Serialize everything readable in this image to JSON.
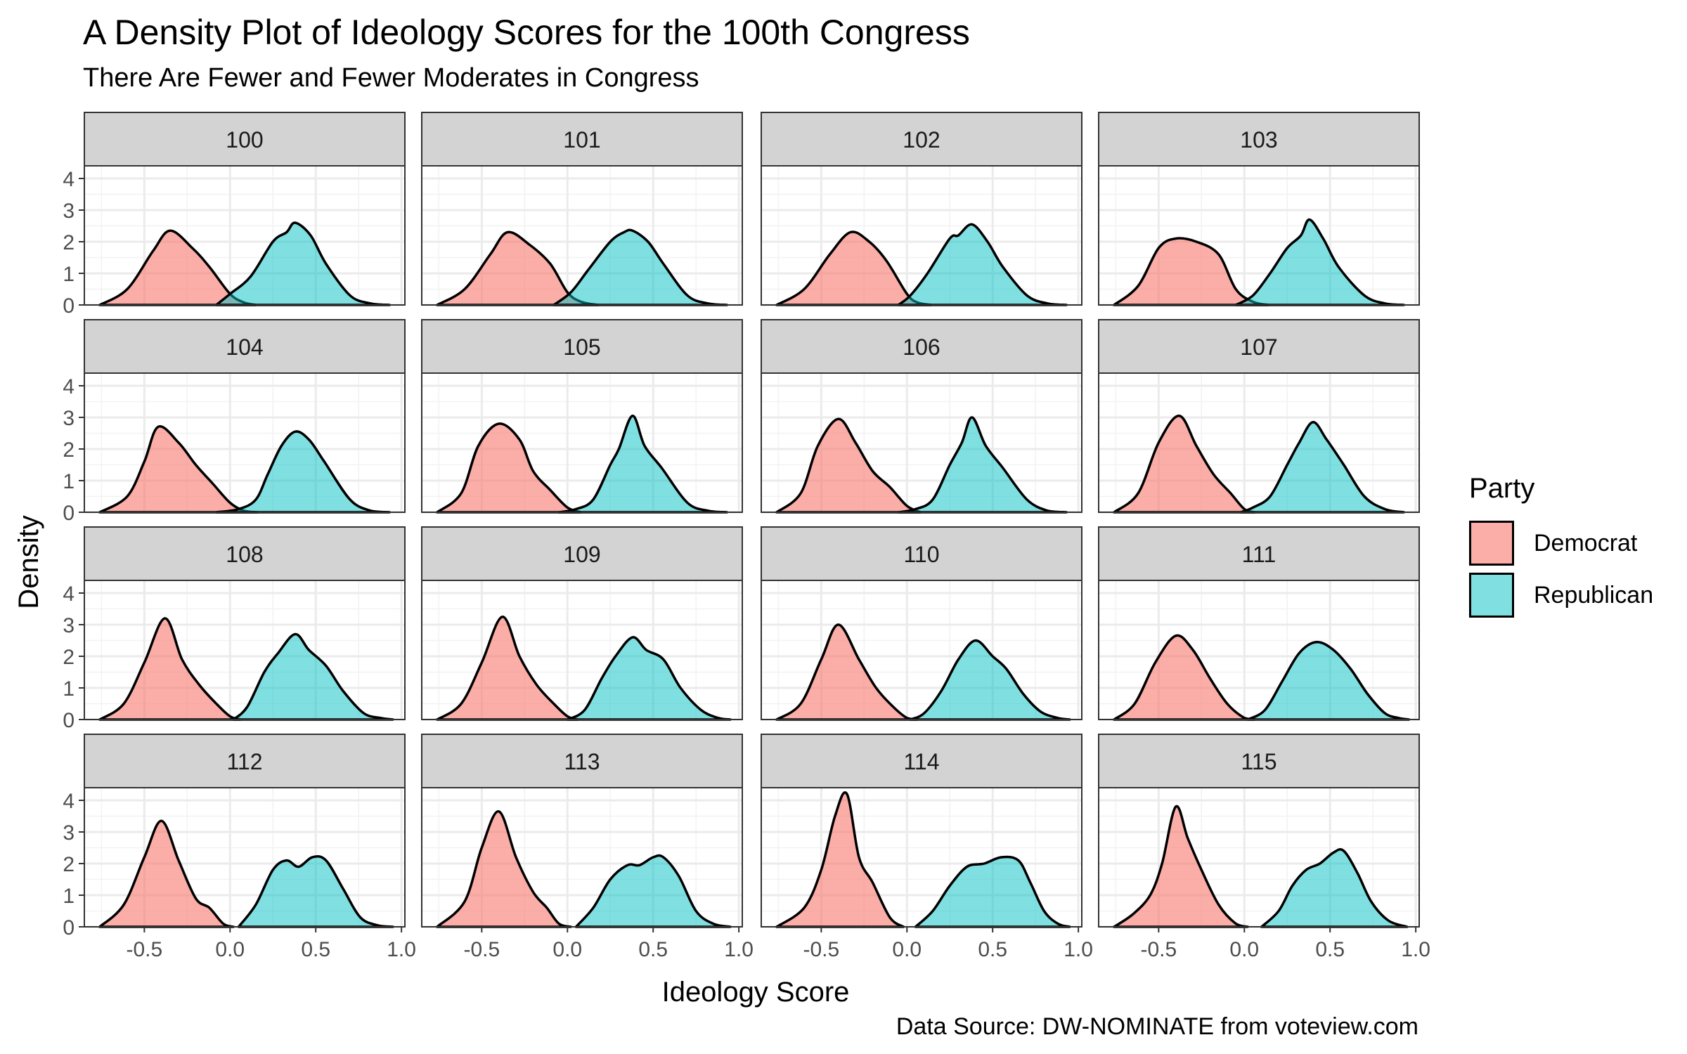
{
  "title": "A Density Plot of Ideology Scores for the 100th Congress",
  "subtitle": "There Are Fewer and Fewer Moderates in Congress",
  "caption": "Data Source: DW-NOMINATE from voteview.com",
  "colors": {
    "Democrat": "#F8766D",
    "Republican": "#00BFC4",
    "strip": "#d3d3d3"
  },
  "legend": {
    "title": "Party",
    "items": [
      {
        "label": "Democrat",
        "color": "#F8766D"
      },
      {
        "label": "Republican",
        "color": "#00BFC4"
      }
    ]
  },
  "chart_data": {
    "type": "area",
    "xlabel": "Ideology Score",
    "ylabel": "Density",
    "xlim": [
      -0.85,
      1.02
    ],
    "ylim": [
      0,
      4.4
    ],
    "x_ticks": [
      "-0.5",
      "0.0",
      "0.5",
      "1.0"
    ],
    "x_tick_values": [
      -0.5,
      0.0,
      0.5,
      1.0
    ],
    "y_ticks": [
      "0",
      "1",
      "2",
      "3",
      "4"
    ],
    "y_tick_values": [
      0,
      1,
      2,
      3,
      4
    ],
    "grid": true,
    "legend_position": "right",
    "facets": [
      {
        "label": "100",
        "series": [
          {
            "name": "Democrat",
            "x": [
              -0.76,
              -0.6,
              -0.45,
              -0.35,
              -0.22,
              -0.12,
              0.0,
              0.08,
              0.15
            ],
            "y": [
              0,
              0.5,
              1.7,
              2.35,
              1.8,
              1.2,
              0.35,
              0.08,
              0
            ]
          },
          {
            "name": "Republican",
            "x": [
              -0.08,
              0.0,
              0.12,
              0.25,
              0.33,
              0.38,
              0.47,
              0.56,
              0.7,
              0.82,
              0.93
            ],
            "y": [
              0,
              0.35,
              0.9,
              2.0,
              2.3,
              2.6,
              2.2,
              1.3,
              0.3,
              0.05,
              0
            ]
          }
        ]
      },
      {
        "label": "101",
        "series": [
          {
            "name": "Democrat",
            "x": [
              -0.76,
              -0.6,
              -0.45,
              -0.35,
              -0.22,
              -0.1,
              0.0,
              0.08,
              0.18
            ],
            "y": [
              0,
              0.5,
              1.6,
              2.3,
              1.9,
              1.3,
              0.4,
              0.1,
              0
            ]
          },
          {
            "name": "Republican",
            "x": [
              -0.08,
              0.02,
              0.12,
              0.25,
              0.33,
              0.38,
              0.47,
              0.56,
              0.7,
              0.82,
              0.93
            ],
            "y": [
              0,
              0.4,
              1.1,
              2.0,
              2.3,
              2.35,
              2.0,
              1.3,
              0.3,
              0.05,
              0
            ]
          }
        ]
      },
      {
        "label": "102",
        "series": [
          {
            "name": "Democrat",
            "x": [
              -0.76,
              -0.6,
              -0.45,
              -0.33,
              -0.22,
              -0.12,
              0.0,
              0.06,
              0.14
            ],
            "y": [
              0,
              0.5,
              1.6,
              2.3,
              2.0,
              1.4,
              0.35,
              0.08,
              0
            ]
          },
          {
            "name": "Republican",
            "x": [
              -0.05,
              0.02,
              0.12,
              0.25,
              0.3,
              0.38,
              0.47,
              0.56,
              0.7,
              0.82,
              0.93
            ],
            "y": [
              0,
              0.3,
              1.0,
              2.1,
              2.2,
              2.55,
              2.0,
              1.2,
              0.3,
              0.05,
              0
            ]
          }
        ]
      },
      {
        "label": "103",
        "series": [
          {
            "name": "Democrat",
            "x": [
              -0.76,
              -0.62,
              -0.5,
              -0.4,
              -0.28,
              -0.15,
              -0.05,
              0.05,
              0.14
            ],
            "y": [
              0,
              0.6,
              1.8,
              2.1,
              2.0,
              1.6,
              0.5,
              0.1,
              0
            ]
          },
          {
            "name": "Republican",
            "x": [
              -0.05,
              0.05,
              0.15,
              0.25,
              0.33,
              0.38,
              0.46,
              0.55,
              0.7,
              0.82,
              0.93
            ],
            "y": [
              0,
              0.3,
              1.0,
              1.8,
              2.2,
              2.7,
              2.1,
              1.2,
              0.3,
              0.05,
              0
            ]
          }
        ]
      },
      {
        "label": "104",
        "series": [
          {
            "name": "Democrat",
            "x": [
              -0.76,
              -0.6,
              -0.5,
              -0.42,
              -0.3,
              -0.2,
              -0.1,
              0.0,
              0.08,
              0.16
            ],
            "y": [
              0,
              0.5,
              1.6,
              2.7,
              2.2,
              1.5,
              0.9,
              0.3,
              0.05,
              0
            ]
          },
          {
            "name": "Republican",
            "x": [
              -0.08,
              0.05,
              0.15,
              0.22,
              0.3,
              0.38,
              0.46,
              0.55,
              0.7,
              0.82,
              0.93
            ],
            "y": [
              0,
              0.1,
              0.4,
              1.2,
              2.1,
              2.55,
              2.3,
              1.6,
              0.4,
              0.05,
              0
            ]
          }
        ]
      },
      {
        "label": "105",
        "series": [
          {
            "name": "Democrat",
            "x": [
              -0.76,
              -0.62,
              -0.52,
              -0.4,
              -0.28,
              -0.2,
              -0.1,
              0.0,
              0.08
            ],
            "y": [
              0,
              0.6,
              2.1,
              2.8,
              2.3,
              1.3,
              0.7,
              0.15,
              0
            ]
          },
          {
            "name": "Republican",
            "x": [
              -0.05,
              0.05,
              0.15,
              0.25,
              0.3,
              0.38,
              0.45,
              0.55,
              0.7,
              0.82,
              0.93
            ],
            "y": [
              0,
              0.1,
              0.4,
              1.5,
              2.0,
              3.05,
              2.1,
              1.4,
              0.3,
              0.05,
              0
            ]
          }
        ]
      },
      {
        "label": "106",
        "series": [
          {
            "name": "Democrat",
            "x": [
              -0.76,
              -0.62,
              -0.52,
              -0.4,
              -0.3,
              -0.2,
              -0.1,
              0.0,
              0.08
            ],
            "y": [
              0,
              0.6,
              2.1,
              2.95,
              2.2,
              1.3,
              0.8,
              0.2,
              0
            ]
          },
          {
            "name": "Republican",
            "x": [
              -0.05,
              0.05,
              0.15,
              0.25,
              0.32,
              0.38,
              0.46,
              0.56,
              0.7,
              0.82,
              0.93
            ],
            "y": [
              0,
              0.1,
              0.4,
              1.5,
              2.2,
              3.0,
              2.1,
              1.4,
              0.4,
              0.05,
              0
            ]
          }
        ]
      },
      {
        "label": "107",
        "series": [
          {
            "name": "Democrat",
            "x": [
              -0.76,
              -0.62,
              -0.5,
              -0.38,
              -0.28,
              -0.18,
              -0.08,
              0.0,
              0.06
            ],
            "y": [
              0,
              0.6,
              2.2,
              3.05,
              2.1,
              1.2,
              0.6,
              0.1,
              0
            ]
          },
          {
            "name": "Republican",
            "x": [
              -0.02,
              0.05,
              0.15,
              0.25,
              0.32,
              0.4,
              0.48,
              0.58,
              0.7,
              0.82,
              0.93
            ],
            "y": [
              0,
              0.15,
              0.5,
              1.5,
              2.2,
              2.85,
              2.3,
              1.5,
              0.5,
              0.1,
              0
            ]
          }
        ]
      },
      {
        "label": "108",
        "series": [
          {
            "name": "Democrat",
            "x": [
              -0.76,
              -0.62,
              -0.5,
              -0.38,
              -0.28,
              -0.18,
              -0.08,
              0.0,
              0.06
            ],
            "y": [
              0,
              0.5,
              1.8,
              3.2,
              1.9,
              1.1,
              0.5,
              0.1,
              0
            ]
          },
          {
            "name": "Republican",
            "x": [
              0.02,
              0.1,
              0.2,
              0.28,
              0.38,
              0.46,
              0.56,
              0.66,
              0.78,
              0.88,
              0.95
            ],
            "y": [
              0,
              0.4,
              1.5,
              2.1,
              2.7,
              2.2,
              1.7,
              0.9,
              0.2,
              0.05,
              0
            ]
          }
        ]
      },
      {
        "label": "109",
        "series": [
          {
            "name": "Democrat",
            "x": [
              -0.76,
              -0.62,
              -0.5,
              -0.38,
              -0.28,
              -0.18,
              -0.08,
              0.0,
              0.06
            ],
            "y": [
              0,
              0.5,
              1.8,
              3.25,
              2.0,
              1.1,
              0.5,
              0.1,
              0
            ]
          },
          {
            "name": "Republican",
            "x": [
              0.0,
              0.1,
              0.2,
              0.28,
              0.38,
              0.46,
              0.56,
              0.66,
              0.78,
              0.88,
              0.95
            ],
            "y": [
              0,
              0.3,
              1.3,
              2.0,
              2.6,
              2.2,
              1.9,
              1.0,
              0.3,
              0.05,
              0
            ]
          }
        ]
      },
      {
        "label": "110",
        "series": [
          {
            "name": "Democrat",
            "x": [
              -0.76,
              -0.62,
              -0.5,
              -0.4,
              -0.28,
              -0.18,
              -0.08,
              0.0,
              0.06
            ],
            "y": [
              0,
              0.5,
              1.9,
              3.0,
              1.9,
              1.0,
              0.4,
              0.05,
              0
            ]
          },
          {
            "name": "Republican",
            "x": [
              0.02,
              0.1,
              0.2,
              0.3,
              0.4,
              0.5,
              0.58,
              0.68,
              0.78,
              0.88,
              0.95
            ],
            "y": [
              0,
              0.2,
              0.9,
              1.9,
              2.5,
              2.0,
              1.6,
              0.8,
              0.25,
              0.05,
              0
            ]
          }
        ]
      },
      {
        "label": "111",
        "series": [
          {
            "name": "Democrat",
            "x": [
              -0.76,
              -0.64,
              -0.52,
              -0.4,
              -0.3,
              -0.2,
              -0.1,
              0.0,
              0.06
            ],
            "y": [
              0,
              0.5,
              1.8,
              2.65,
              2.2,
              1.3,
              0.5,
              0.05,
              0
            ]
          },
          {
            "name": "Republican",
            "x": [
              0.02,
              0.12,
              0.22,
              0.32,
              0.42,
              0.52,
              0.62,
              0.72,
              0.82,
              0.9,
              0.96
            ],
            "y": [
              0,
              0.3,
              1.2,
              2.1,
              2.45,
              2.2,
              1.6,
              0.8,
              0.2,
              0.05,
              0
            ]
          }
        ]
      },
      {
        "label": "112",
        "series": [
          {
            "name": "Democrat",
            "x": [
              -0.76,
              -0.62,
              -0.5,
              -0.4,
              -0.3,
              -0.2,
              -0.12,
              -0.04,
              0.02
            ],
            "y": [
              0,
              0.7,
              2.2,
              3.35,
              2.1,
              0.9,
              0.6,
              0.1,
              0
            ]
          },
          {
            "name": "Republican",
            "x": [
              0.05,
              0.15,
              0.25,
              0.33,
              0.4,
              0.48,
              0.56,
              0.66,
              0.76,
              0.86,
              0.95
            ],
            "y": [
              0,
              0.7,
              1.8,
              2.1,
              1.9,
              2.2,
              2.1,
              1.2,
              0.3,
              0.05,
              0
            ]
          }
        ]
      },
      {
        "label": "113",
        "series": [
          {
            "name": "Democrat",
            "x": [
              -0.76,
              -0.6,
              -0.5,
              -0.4,
              -0.3,
              -0.2,
              -0.12,
              -0.05,
              0.02
            ],
            "y": [
              0,
              0.8,
              2.5,
              3.65,
              2.2,
              1.1,
              0.6,
              0.1,
              0
            ]
          },
          {
            "name": "Republican",
            "x": [
              0.05,
              0.15,
              0.25,
              0.35,
              0.42,
              0.5,
              0.56,
              0.65,
              0.75,
              0.85,
              0.95
            ],
            "y": [
              0,
              0.6,
              1.5,
              1.95,
              1.95,
              2.2,
              2.2,
              1.6,
              0.5,
              0.1,
              0
            ]
          }
        ]
      },
      {
        "label": "114",
        "series": [
          {
            "name": "Democrat",
            "x": [
              -0.76,
              -0.6,
              -0.5,
              -0.42,
              -0.35,
              -0.28,
              -0.2,
              -0.1,
              -0.02
            ],
            "y": [
              0,
              0.6,
              1.8,
              3.5,
              4.2,
              2.2,
              1.4,
              0.3,
              0
            ]
          },
          {
            "name": "Republican",
            "x": [
              0.05,
              0.15,
              0.25,
              0.35,
              0.45,
              0.55,
              0.65,
              0.72,
              0.8,
              0.88,
              0.95
            ],
            "y": [
              0,
              0.5,
              1.3,
              1.9,
              2.0,
              2.2,
              2.1,
              1.4,
              0.5,
              0.1,
              0
            ]
          }
        ]
      },
      {
        "label": "115",
        "series": [
          {
            "name": "Democrat",
            "x": [
              -0.76,
              -0.65,
              -0.55,
              -0.48,
              -0.4,
              -0.33,
              -0.25,
              -0.15,
              -0.05,
              0.02
            ],
            "y": [
              0,
              0.4,
              1.0,
              2.0,
              3.8,
              2.8,
              1.8,
              0.7,
              0.1,
              0
            ]
          },
          {
            "name": "Republican",
            "x": [
              0.1,
              0.2,
              0.28,
              0.36,
              0.44,
              0.52,
              0.58,
              0.66,
              0.74,
              0.84,
              0.95
            ],
            "y": [
              0,
              0.5,
              1.3,
              1.8,
              2.0,
              2.35,
              2.4,
              1.7,
              0.8,
              0.2,
              0
            ]
          }
        ]
      }
    ]
  }
}
